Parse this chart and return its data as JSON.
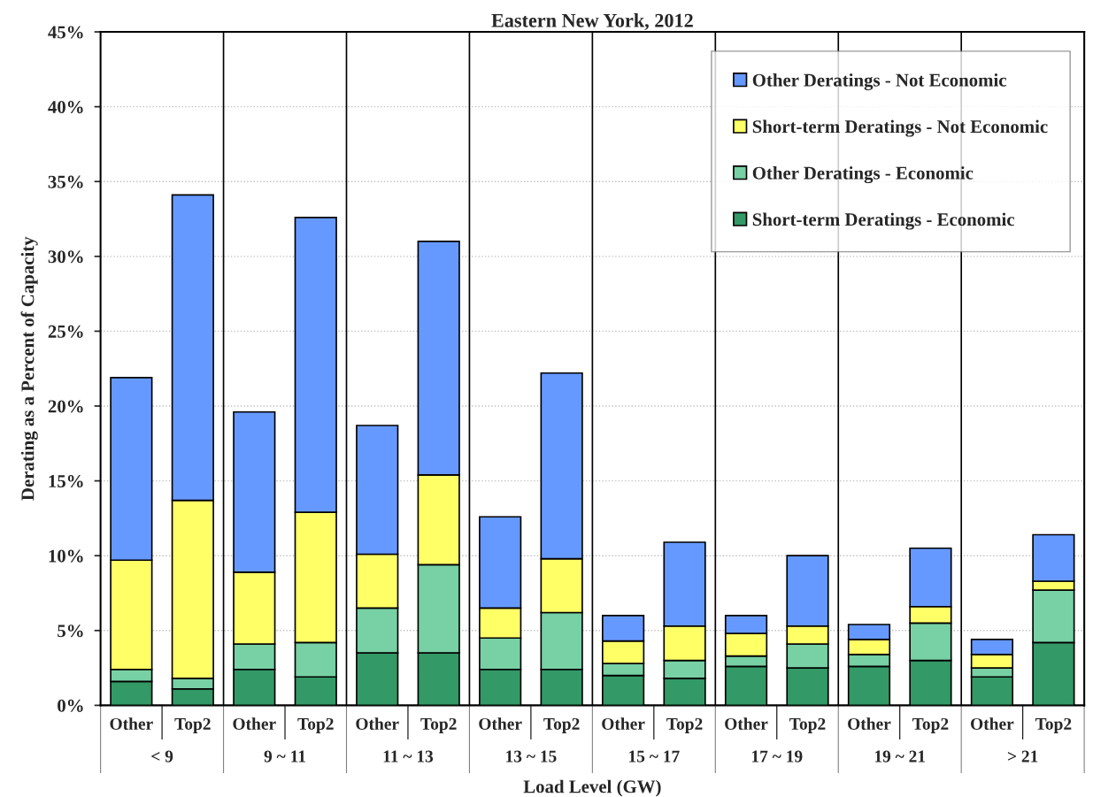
{
  "chart_data": {
    "type": "bar",
    "stacked": true,
    "title": "Eastern New York, 2012",
    "xlabel": "Load Level (GW)",
    "ylabel": "Derating as a Percent of Capacity",
    "categories": [
      "Other",
      "Top2",
      "Other",
      "Top2",
      "Other",
      "Top2",
      "Other",
      "Top2",
      "Other",
      "Top2",
      "Other",
      "Top2",
      "Other",
      "Top2",
      "Other",
      "Top2"
    ],
    "annotations": [
      "< 9",
      "9 ~ 11",
      "11 ~ 13",
      "13 ~ 15",
      "15 ~ 17",
      "17 ~ 19",
      "19 ~ 21",
      "> 21"
    ],
    "series": [
      {
        "name": "Short-term Deratings - Economic",
        "color": "#339966",
        "values": [
          1.6,
          1.1,
          2.4,
          1.9,
          3.5,
          3.5,
          2.4,
          2.4,
          2.0,
          1.8,
          2.6,
          2.5,
          2.6,
          3.0,
          1.9,
          4.2
        ]
      },
      {
        "name": "Other Deratings - Economic",
        "color": "#77d1a4",
        "values": [
          0.8,
          0.7,
          1.7,
          2.3,
          3.0,
          5.9,
          2.1,
          3.8,
          0.8,
          1.2,
          0.7,
          1.6,
          0.8,
          2.5,
          0.6,
          3.5
        ]
      },
      {
        "name": "Short-term Deratings - Not Economic",
        "color": "#ffff66",
        "values": [
          7.3,
          11.9,
          4.8,
          8.7,
          3.6,
          6.0,
          2.0,
          3.6,
          1.5,
          2.3,
          1.5,
          1.2,
          1.0,
          1.1,
          0.9,
          0.6
        ]
      },
      {
        "name": "Other Deratings - Not Economic",
        "color": "#6699ff",
        "values": [
          12.2,
          20.4,
          10.7,
          19.7,
          8.6,
          15.6,
          6.1,
          12.4,
          1.7,
          5.6,
          1.2,
          4.7,
          1.0,
          3.9,
          1.0,
          3.1
        ]
      }
    ],
    "ylim": [
      0,
      45
    ],
    "yticks": [
      {
        "value": 0,
        "label": "0%"
      },
      {
        "value": 5,
        "label": "5%"
      },
      {
        "value": 10,
        "label": "10%"
      },
      {
        "value": 15,
        "label": "15%"
      },
      {
        "value": 20,
        "label": "20%"
      },
      {
        "value": 25,
        "label": "25%"
      },
      {
        "value": 30,
        "label": "30%"
      },
      {
        "value": 35,
        "label": "35%"
      },
      {
        "value": 40,
        "label": "40%"
      },
      {
        "value": 45,
        "label": "45%"
      }
    ],
    "grid": "y",
    "legend": "top right"
  }
}
